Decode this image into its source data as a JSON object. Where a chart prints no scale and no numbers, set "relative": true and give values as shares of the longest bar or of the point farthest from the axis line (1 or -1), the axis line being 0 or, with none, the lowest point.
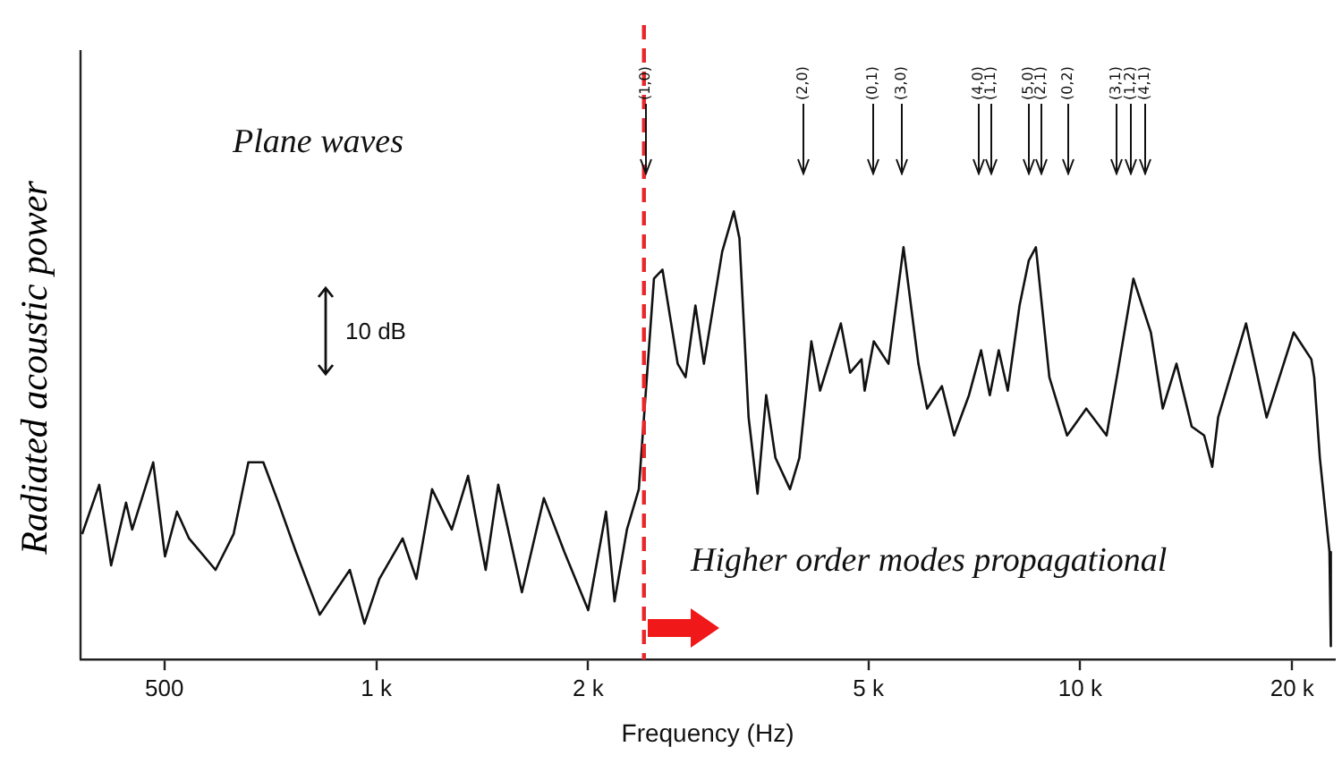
{
  "chart_data": {
    "type": "line",
    "relative": true,
    "log": "x",
    "grid": false,
    "xlabel": "Frequency (Hz)",
    "ylabel": "Radiated acoustic power",
    "xlim": [
      380,
      23000
    ],
    "xticks": [
      500,
      {
        "value": 1000,
        "label": "1 k"
      },
      {
        "value": 2000,
        "label": "2 k"
      },
      {
        "value": 5000,
        "label": "5 k"
      },
      {
        "value": 10000,
        "label": "10 k"
      },
      {
        "value": 20000,
        "label": "20 k"
      }
    ],
    "x": [
      382,
      404,
      420,
      441,
      450,
      482,
      501,
      521,
      542,
      591,
      627,
      658,
      691,
      726,
      769,
      831,
      917,
      962,
      1010,
      1090,
      1140,
      1200,
      1280,
      1350,
      1430,
      1490,
      1610,
      1730,
      1850,
      2000,
      2120,
      2180,
      2270,
      2360,
      2480,
      2550,
      2680,
      2750,
      2840,
      2920,
      3100,
      3220,
      3280,
      3380,
      3480,
      3580,
      3690,
      3870,
      3990,
      4150,
      4270,
      4570,
      4710,
      4890,
      4940,
      5090,
      5340,
      5610,
      5890,
      6060,
      6360,
      6620,
      6950,
      7230,
      7440,
      7660,
      7890,
      8200,
      8450,
      8650,
      9040,
      9580,
      10200,
      10900,
      11300,
      11900,
      12600,
      13100,
      13700,
      14400,
      15000,
      15400,
      15700,
      17200,
      18400,
      20100,
      21300,
      21500,
      21900,
      22600,
      22700
    ],
    "series": [
      {
        "color": "#111111",
        "values": [
          0.28,
          0.39,
          0.21,
          0.35,
          0.29,
          0.44,
          0.23,
          0.33,
          0.27,
          0.2,
          0.28,
          0.44,
          0.44,
          0.35,
          0.24,
          0.1,
          0.2,
          0.08,
          0.18,
          0.27,
          0.18,
          0.38,
          0.29,
          0.41,
          0.2,
          0.39,
          0.15,
          0.36,
          0.24,
          0.11,
          0.33,
          0.13,
          0.29,
          0.38,
          0.85,
          0.87,
          0.66,
          0.63,
          0.79,
          0.66,
          0.91,
          1.0,
          0.94,
          0.54,
          0.37,
          0.59,
          0.45,
          0.38,
          0.45,
          0.71,
          0.6,
          0.75,
          0.64,
          0.67,
          0.6,
          0.71,
          0.66,
          0.92,
          0.66,
          0.56,
          0.61,
          0.5,
          0.59,
          0.69,
          0.59,
          0.69,
          0.6,
          0.79,
          0.89,
          0.92,
          0.63,
          0.5,
          0.56,
          0.5,
          0.64,
          0.85,
          0.73,
          0.56,
          0.66,
          0.52,
          0.5,
          0.43,
          0.54,
          0.75,
          0.54,
          0.73,
          0.67,
          0.63,
          0.45,
          0.24,
          0.03
        ]
      }
    ],
    "ref_lines": [
      {
        "axis": "x",
        "value": 2400,
        "color": "#e8262b",
        "line_style": "dashed"
      }
    ],
    "annotations": [
      "Plane waves",
      "10 dB",
      "Higher order modes propagational",
      "(1,0)",
      "(2,0)",
      "(0,1)",
      "(3,0)",
      "(4,0)",
      "(1,1)",
      "(5,0)",
      "(2,1)",
      "(0,2)",
      "(3,1)",
      "(1,2)",
      "(4,1)"
    ]
  }
}
